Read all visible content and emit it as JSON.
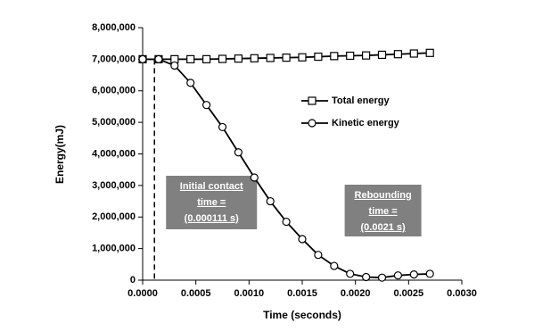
{
  "chart_data": {
    "type": "line",
    "x_label": "Time (seconds)",
    "y_label": "Energy(mJ)",
    "x": [
      0,
      0.00015,
      0.0003,
      0.00045,
      0.0006,
      0.00075,
      0.0009,
      0.00105,
      0.0012,
      0.00135,
      0.0015,
      0.00165,
      0.0018,
      0.00195,
      0.0021,
      0.00225,
      0.0024,
      0.00255,
      0.0027
    ],
    "series": [
      {
        "name": "Total energy",
        "color": "#000000",
        "marker": "square",
        "values": [
          7000000,
          7000000,
          7000000,
          7000000,
          7000000,
          7010000,
          7020000,
          7030000,
          7040000,
          7050000,
          7060000,
          7080000,
          7100000,
          7110000,
          7120000,
          7140000,
          7160000,
          7180000,
          7200000
        ]
      },
      {
        "name": "Kinetic energy",
        "color": "#000000",
        "marker": "circle",
        "values": [
          7000000,
          7000000,
          6800000,
          6250000,
          5550000,
          4850000,
          4050000,
          3250000,
          2500000,
          1850000,
          1300000,
          800000,
          450000,
          200000,
          100000,
          80000,
          150000,
          180000,
          200000
        ]
      }
    ],
    "xlim": [
      0,
      0.003
    ],
    "xticks": [
      {
        "value": 0,
        "label": "0.0000"
      },
      {
        "value": 0.0005,
        "label": "0.0005"
      },
      {
        "value": 0.001,
        "label": "0.0010"
      },
      {
        "value": 0.0015,
        "label": "0.0015"
      },
      {
        "value": 0.002,
        "label": "0.0020"
      },
      {
        "value": 0.0025,
        "label": "0.0025"
      },
      {
        "value": 0.003,
        "label": "0.0030"
      }
    ],
    "ylim": [
      0,
      8000000
    ],
    "yticks": [
      0,
      {
        "value": 1000000,
        "label": "1,000,000"
      },
      {
        "value": 2000000,
        "label": "2,000,000"
      },
      {
        "value": 3000000,
        "label": "3,000,000"
      },
      {
        "value": 4000000,
        "label": "4,000,000"
      },
      {
        "value": 5000000,
        "label": "5,000,000"
      },
      {
        "value": 6000000,
        "label": "6,000,000"
      },
      {
        "value": 7000000,
        "label": "7,000,000"
      },
      {
        "value": 8000000,
        "label": "8,000,000"
      }
    ],
    "grid": false,
    "legend": "upper center",
    "annotations": [
      {
        "lines": [
          "Initial contact",
          "time =",
          "(0.000111 s)"
        ],
        "x": 0.000111,
        "y": 7000000
      },
      {
        "lines": [
          "Rebounding",
          "time =",
          "(0.0021 s)"
        ],
        "x": 0.0021,
        "y": 100000
      }
    ]
  }
}
